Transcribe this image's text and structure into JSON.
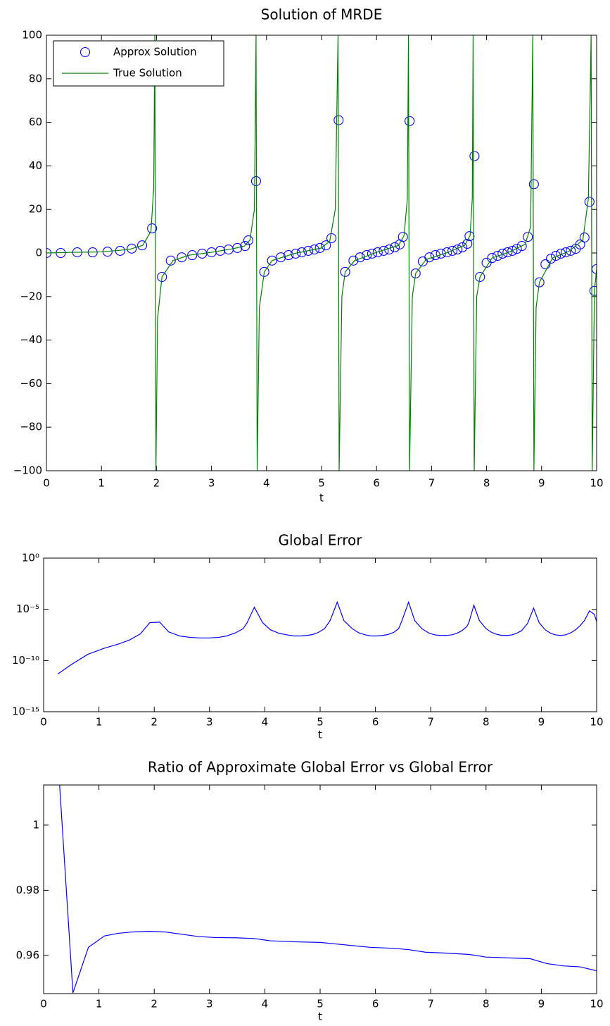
{
  "chart_data": [
    {
      "type": "line",
      "title": "Solution of MRDE",
      "xlabel": "t",
      "xlim": [
        0,
        10
      ],
      "ylim": [
        -100,
        100
      ],
      "xticks": [
        0,
        1,
        2,
        3,
        4,
        5,
        6,
        7,
        8,
        9,
        10
      ],
      "yticks": [
        {
          "value": -100,
          "label": "−100"
        },
        {
          "value": -80,
          "label": "−80"
        },
        {
          "value": -60,
          "label": "−60"
        },
        {
          "value": -40,
          "label": "−40"
        },
        {
          "value": -20,
          "label": "−20"
        },
        0,
        20,
        40,
        60,
        80,
        100
      ],
      "legend": "upper left",
      "series": [
        {
          "name": "Approx Solution",
          "color": "#0000ff",
          "mode": "markers",
          "x": [
            0,
            0.26,
            0.56,
            0.84,
            1.11,
            1.34,
            1.55,
            1.74,
            1.92,
            2.1,
            2.26,
            2.46,
            2.65,
            2.83,
            3.0,
            3.16,
            3.31,
            3.47,
            3.61,
            3.67,
            3.81,
            3.96,
            4.1,
            4.26,
            4.4,
            4.53,
            4.64,
            4.76,
            4.87,
            4.97,
            5.08,
            5.18,
            5.31,
            5.43,
            5.58,
            5.7,
            5.82,
            5.92,
            6.02,
            6.13,
            6.23,
            6.33,
            6.42,
            6.48,
            6.6,
            6.71,
            6.84,
            6.96,
            7.07,
            7.17,
            7.28,
            7.38,
            7.47,
            7.56,
            7.65,
            7.69,
            7.78,
            7.88,
            8.0,
            8.1,
            8.2,
            8.29,
            8.38,
            8.47,
            8.55,
            8.64,
            8.75,
            8.86,
            8.96,
            9.07,
            9.17,
            9.26,
            9.35,
            9.44,
            9.53,
            9.62,
            9.7,
            9.78,
            9.87,
            9.96,
            10
          ],
          "values": [
            0,
            0,
            0.3,
            0.3,
            0.6,
            1,
            2,
            3.5,
            11.3,
            -11,
            -3.5,
            -2,
            -1,
            -0.3,
            0.3,
            1,
            1.6,
            2.3,
            3.2,
            5.8,
            33,
            -8.7,
            -3.5,
            -2,
            -1,
            -0.3,
            0.3,
            1,
            1.6,
            2.3,
            3.5,
            6.8,
            61,
            -8.7,
            -3.5,
            -2,
            -1,
            -0.3,
            0.3,
            1,
            1.6,
            2.6,
            3.9,
            7.4,
            60.6,
            -9.4,
            -3.9,
            -2,
            -1,
            -0.3,
            0.3,
            1,
            1.6,
            2.6,
            4.2,
            7.7,
            44.5,
            -11,
            -4.5,
            -2.3,
            -1.3,
            -0.3,
            0.3,
            1,
            1.9,
            3.2,
            7.4,
            31.6,
            -13.5,
            -5.2,
            -2.6,
            -1.3,
            -0.3,
            0.3,
            1,
            1.9,
            3.9,
            7.1,
            23.5,
            -17.4,
            -7.4
          ]
        },
        {
          "name": "True Solution",
          "color": "#008000",
          "mode": "lines",
          "x": [
            0,
            0.5,
            1.0,
            1.5,
            1.75,
            1.9,
            1.95,
            1.97,
            1.99,
            2.02,
            2.1,
            2.3,
            2.6,
            3.0,
            3.4,
            3.6,
            3.7,
            3.78,
            3.81,
            3.83,
            3.87,
            3.96,
            4.1,
            4.5,
            5.0,
            5.15,
            5.25,
            5.3,
            5.32,
            5.37,
            5.43,
            5.6,
            6.0,
            6.4,
            6.5,
            6.56,
            6.58,
            6.6,
            6.65,
            6.71,
            6.9,
            7.3,
            7.6,
            7.7,
            7.74,
            7.755,
            7.775,
            7.82,
            7.88,
            8.1,
            8.4,
            8.7,
            8.8,
            8.84,
            8.86,
            8.9,
            8.96,
            9.2,
            9.5,
            9.75,
            9.85,
            9.9,
            9.92,
            9.96,
            10
          ],
          "values": [
            0,
            0.3,
            0.5,
            1.6,
            3.5,
            10,
            30,
            100,
            -100,
            -30,
            -11,
            -3.5,
            -1,
            0.3,
            2,
            3.2,
            6,
            20,
            100,
            -100,
            -25,
            -8.7,
            -3.5,
            -0.3,
            2.3,
            5.5,
            20,
            100,
            -100,
            -20,
            -8.7,
            -3.5,
            0.3,
            3.5,
            8,
            25,
            100,
            -100,
            -20,
            -9.4,
            -3,
            0.3,
            3.5,
            8,
            25,
            100,
            -100,
            -20,
            -11,
            -2.3,
            0.3,
            4,
            12,
            100,
            -100,
            -25,
            -13.5,
            -2.3,
            0.8,
            6,
            25,
            100,
            -100,
            -17.4,
            -7.4
          ]
        }
      ]
    },
    {
      "type": "line",
      "title": "Global Error",
      "xlabel": "t",
      "yscale": "log",
      "xlim": [
        0,
        10
      ],
      "ylim": [
        1e-15,
        1
      ],
      "xticks": [
        0,
        1,
        2,
        3,
        4,
        5,
        6,
        7,
        8,
        9,
        10
      ],
      "yticks": [
        {
          "value": 1e-15,
          "label": "10⁻¹⁵"
        },
        {
          "value": 1e-10,
          "label": "10⁻¹⁰"
        },
        {
          "value": 1e-05,
          "label": "10⁻⁵"
        },
        {
          "value": 1,
          "label": "10⁰"
        }
      ],
      "series": [
        {
          "color": "#0000ff",
          "mode": "lines",
          "x": [
            0.26,
            0.5,
            0.8,
            1.1,
            1.35,
            1.55,
            1.75,
            1.92,
            2.1,
            2.26,
            2.46,
            2.65,
            2.83,
            3.0,
            3.16,
            3.31,
            3.47,
            3.61,
            3.68,
            3.81,
            3.96,
            4.1,
            4.26,
            4.4,
            4.53,
            4.64,
            4.76,
            4.87,
            4.97,
            5.08,
            5.18,
            5.31,
            5.43,
            5.58,
            5.7,
            5.82,
            5.92,
            6.02,
            6.13,
            6.23,
            6.33,
            6.42,
            6.48,
            6.6,
            6.71,
            6.84,
            6.96,
            7.07,
            7.17,
            7.28,
            7.38,
            7.47,
            7.56,
            7.65,
            7.69,
            7.78,
            7.88,
            8.0,
            8.1,
            8.2,
            8.29,
            8.38,
            8.47,
            8.55,
            8.64,
            8.75,
            8.86,
            8.96,
            9.07,
            9.17,
            9.26,
            9.35,
            9.44,
            9.53,
            9.62,
            9.7,
            9.78,
            9.87,
            9.96,
            10
          ],
          "values": [
            5e-12,
            4e-11,
            4e-10,
            1.6e-09,
            4e-09,
            1e-08,
            4e-08,
            5e-07,
            5.6e-07,
            6.3e-08,
            2.5e-08,
            1.8e-08,
            1.6e-08,
            1.6e-08,
            1.8e-08,
            2.5e-08,
            5e-08,
            1.3e-07,
            5e-07,
            1.6e-05,
            5e-07,
            1e-07,
            4.5e-08,
            3.2e-08,
            2.5e-08,
            2.5e-08,
            2.8e-08,
            3.5e-08,
            5.6e-08,
            1.3e-07,
            7.9e-07,
            5e-05,
            7.9e-07,
            1.3e-07,
            5e-08,
            3.2e-08,
            2.5e-08,
            2.5e-08,
            2.8e-08,
            3.5e-08,
            5.6e-08,
            1.3e-07,
            7.9e-07,
            5e-05,
            7.9e-07,
            1.3e-07,
            5e-08,
            3.2e-08,
            2.8e-08,
            2.8e-08,
            3.2e-08,
            4.5e-08,
            7.9e-08,
            2e-07,
            5e-07,
            2.5e-05,
            7.9e-07,
            1.3e-07,
            5.6e-08,
            3.5e-08,
            2.8e-08,
            2.8e-08,
            3.2e-08,
            4.5e-08,
            7.9e-08,
            4e-07,
            1.3e-05,
            5e-07,
            1e-07,
            4.5e-08,
            3.2e-08,
            2.8e-08,
            3.2e-08,
            5e-08,
            1e-07,
            2.5e-07,
            7.9e-07,
            7.1e-06,
            3.2e-06,
            6.3e-07
          ]
        }
      ]
    },
    {
      "type": "line",
      "title": "Ratio of Approximate Global Error vs Global Error",
      "xlabel": "t",
      "xlim": [
        0,
        10
      ],
      "ylim": [
        0.9483,
        1.0123
      ],
      "xticks": [
        0,
        1,
        2,
        3,
        4,
        5,
        6,
        7,
        8,
        9,
        10
      ],
      "yticks": [
        0.96,
        0.98,
        1
      ],
      "series": [
        {
          "color": "#0000ff",
          "mode": "lines",
          "x": [
            0.26,
            0.53,
            0.81,
            1.1,
            1.35,
            1.6,
            1.9,
            2.2,
            2.5,
            2.8,
            3.1,
            3.5,
            3.8,
            4.1,
            4.5,
            5.0,
            5.3,
            5.6,
            5.9,
            6.3,
            6.6,
            6.9,
            7.3,
            7.7,
            8.0,
            8.5,
            8.8,
            9.1,
            9.4,
            9.7,
            10
          ],
          "values": [
            1.02,
            0.9485,
            0.9625,
            0.966,
            0.9668,
            0.9672,
            0.9674,
            0.9672,
            0.9665,
            0.9658,
            0.9655,
            0.9654,
            0.9652,
            0.9645,
            0.9642,
            0.964,
            0.9635,
            0.963,
            0.9625,
            0.9622,
            0.9618,
            0.961,
            0.9607,
            0.9603,
            0.9595,
            0.9592,
            0.959,
            0.9575,
            0.9568,
            0.9565,
            0.9553
          ]
        }
      ]
    }
  ]
}
